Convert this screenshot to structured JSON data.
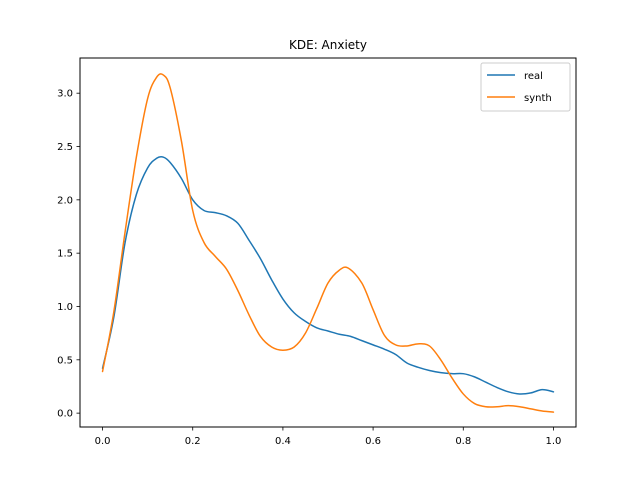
{
  "chart_data": {
    "type": "line",
    "title": "KDE: Anxiety",
    "xlabel": "",
    "ylabel": "",
    "xlim": [
      -0.05,
      1.05
    ],
    "ylim": [
      -0.13,
      3.33
    ],
    "xticks": [
      0.0,
      0.2,
      0.4,
      0.6,
      0.8,
      1.0
    ],
    "xtick_labels": [
      "0.0",
      "0.2",
      "0.4",
      "0.6",
      "0.8",
      "1.0"
    ],
    "yticks": [
      0.0,
      0.5,
      1.0,
      1.5,
      2.0,
      2.5,
      3.0
    ],
    "ytick_labels": [
      "0.0",
      "0.5",
      "1.0",
      "1.5",
      "2.0",
      "2.5",
      "3.0"
    ],
    "grid": false,
    "legend_position": "top-right",
    "series": [
      {
        "name": "real",
        "color": "#1f77b4",
        "x": [
          0.0,
          0.025,
          0.05,
          0.075,
          0.1,
          0.12,
          0.135,
          0.15,
          0.175,
          0.2,
          0.225,
          0.25,
          0.275,
          0.3,
          0.325,
          0.35,
          0.375,
          0.4,
          0.425,
          0.45,
          0.475,
          0.5,
          0.525,
          0.55,
          0.575,
          0.6,
          0.625,
          0.65,
          0.675,
          0.7,
          0.725,
          0.75,
          0.775,
          0.8,
          0.825,
          0.85,
          0.875,
          0.9,
          0.925,
          0.95,
          0.975,
          1.0
        ],
        "y": [
          0.42,
          0.9,
          1.6,
          2.05,
          2.3,
          2.39,
          2.4,
          2.35,
          2.2,
          2.0,
          1.9,
          1.88,
          1.85,
          1.78,
          1.62,
          1.45,
          1.25,
          1.07,
          0.94,
          0.86,
          0.8,
          0.77,
          0.74,
          0.72,
          0.68,
          0.64,
          0.6,
          0.55,
          0.47,
          0.43,
          0.4,
          0.38,
          0.37,
          0.37,
          0.34,
          0.29,
          0.24,
          0.2,
          0.18,
          0.19,
          0.22,
          0.2
        ]
      },
      {
        "name": "synth",
        "color": "#ff7f0e",
        "x": [
          0.0,
          0.025,
          0.05,
          0.075,
          0.1,
          0.12,
          0.135,
          0.15,
          0.175,
          0.2,
          0.225,
          0.25,
          0.275,
          0.3,
          0.325,
          0.35,
          0.375,
          0.4,
          0.425,
          0.45,
          0.475,
          0.5,
          0.525,
          0.545,
          0.575,
          0.6,
          0.625,
          0.65,
          0.675,
          0.7,
          0.725,
          0.75,
          0.775,
          0.8,
          0.825,
          0.85,
          0.875,
          0.9,
          0.925,
          0.95,
          0.975,
          1.0
        ],
        "y": [
          0.39,
          0.95,
          1.7,
          2.4,
          2.95,
          3.15,
          3.17,
          3.05,
          2.55,
          1.9,
          1.6,
          1.47,
          1.35,
          1.15,
          0.92,
          0.72,
          0.62,
          0.59,
          0.62,
          0.75,
          0.98,
          1.22,
          1.34,
          1.36,
          1.22,
          0.97,
          0.73,
          0.64,
          0.63,
          0.65,
          0.63,
          0.5,
          0.33,
          0.18,
          0.09,
          0.06,
          0.06,
          0.07,
          0.06,
          0.04,
          0.02,
          0.01
        ]
      }
    ]
  }
}
